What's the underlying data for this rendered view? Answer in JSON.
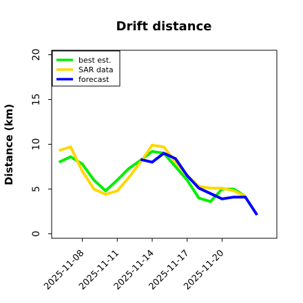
{
  "chart_data": {
    "type": "line",
    "title": "Drift distance",
    "xlabel": "",
    "ylabel": "Distance (km)",
    "ylim": [
      -0.5,
      20.5
    ],
    "y_ticks": [
      "0",
      "5",
      "10",
      "15",
      "20"
    ],
    "x_ticks": [
      "2025-11-08",
      "2025-11-11",
      "2025-11-14",
      "2025-11-17",
      "2025-11-20"
    ],
    "grid": false,
    "legend_position": "top-left",
    "series": [
      {
        "name": "best est.",
        "color": "#00ee00",
        "x": [
          "2025-11-06",
          "2025-11-07",
          "2025-11-08",
          "2025-11-09",
          "2025-11-10",
          "2025-11-11",
          "2025-11-12",
          "2025-11-13",
          "2025-11-14",
          "2025-11-15",
          "2025-11-16",
          "2025-11-17",
          "2025-11-18",
          "2025-11-19",
          "2025-11-20",
          "2025-11-21",
          "2025-11-22",
          "2025-11-23"
        ],
        "values": [
          8.0,
          8.6,
          7.8,
          6.0,
          4.8,
          6.0,
          7.3,
          8.2,
          9.2,
          9.0,
          7.5,
          6.0,
          4.0,
          3.6,
          5.0,
          5.0,
          4.2,
          null
        ]
      },
      {
        "name": "SAR data",
        "color": "#ffd700",
        "x": [
          "2025-11-06",
          "2025-11-07",
          "2025-11-08",
          "2025-11-09",
          "2025-11-10",
          "2025-11-11",
          "2025-11-12",
          "2025-11-13",
          "2025-11-14",
          "2025-11-15",
          "2025-11-16",
          "2025-11-17",
          "2025-11-18",
          "2025-11-19",
          "2025-11-20",
          "2025-11-21",
          "2025-11-22",
          "2025-11-23"
        ],
        "values": [
          9.3,
          9.7,
          7.0,
          5.0,
          4.4,
          4.8,
          6.3,
          8.0,
          9.9,
          9.7,
          8.0,
          6.5,
          5.3,
          5.1,
          5.1,
          4.8,
          4.2,
          null
        ]
      },
      {
        "name": "forecast",
        "color": "#0000ff",
        "x": [
          "2025-11-13",
          "2025-11-14",
          "2025-11-15",
          "2025-11-16",
          "2025-11-17",
          "2025-11-18",
          "2025-11-19",
          "2025-11-20",
          "2025-11-21",
          "2025-11-22",
          "2025-11-23"
        ],
        "values": [
          8.3,
          8.0,
          9.0,
          8.4,
          6.5,
          5.1,
          4.5,
          3.9,
          4.1,
          4.1,
          2.1
        ]
      }
    ]
  }
}
